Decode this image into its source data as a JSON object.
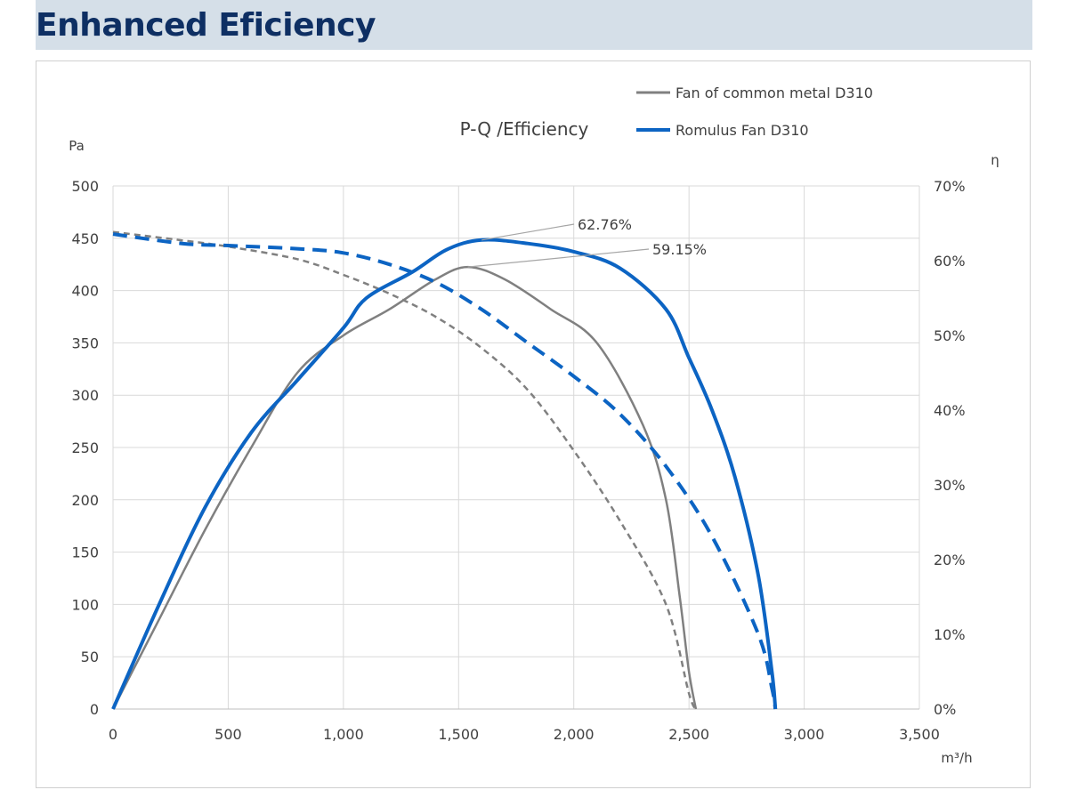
{
  "page": {
    "title": "Enhanced Eficiency"
  },
  "colors": {
    "header_band": "#d5dfe8",
    "title": "#0e2f63",
    "common": "#808080",
    "romulus": "#0c64c3",
    "grid": "#d9d9d9"
  },
  "chart_data": {
    "type": "line",
    "title": "P-Q /Efficiency",
    "xlabel": "m³/h",
    "ylabel_left": "Pa",
    "ylabel_right": "η",
    "xlim": [
      0,
      3500
    ],
    "ylim_left": [
      0,
      500
    ],
    "ylim_right": [
      0,
      70
    ],
    "x_ticks": [
      "0",
      "500",
      "1,000",
      "1,500",
      "2,000",
      "2,500",
      "3,000",
      "3,500"
    ],
    "y_left_ticks": [
      "0",
      "50",
      "100",
      "150",
      "200",
      "250",
      "300",
      "350",
      "400",
      "450",
      "500"
    ],
    "y_right_ticks": [
      "0%",
      "10%",
      "20%",
      "30%",
      "40%",
      "50%",
      "60%",
      "70%"
    ],
    "grid": "on",
    "legend": {
      "placement": "top-right",
      "items": [
        {
          "label": "Fan of common metal D310",
          "color": "#808080"
        },
        {
          "label": "Romulus Fan D310",
          "color": "#0c64c3"
        }
      ]
    },
    "annotations": [
      {
        "text": "62.76%",
        "x": 1600,
        "y_pct": 62.76,
        "series": "Romulus Fan D310"
      },
      {
        "text": "59.15%",
        "x": 1540,
        "y_pct": 59.15,
        "series": "Fan of common metal D310"
      }
    ],
    "series": [
      {
        "name": "Fan of common metal D310",
        "metric": "pressure",
        "axis": "left",
        "style": "dashed",
        "color": "#808080",
        "points": [
          [
            0,
            456
          ],
          [
            300,
            448
          ],
          [
            500,
            442
          ],
          [
            800,
            430
          ],
          [
            1000,
            415
          ],
          [
            1200,
            397
          ],
          [
            1400,
            375
          ],
          [
            1600,
            345
          ],
          [
            1800,
            305
          ],
          [
            2000,
            247
          ],
          [
            2200,
            180
          ],
          [
            2400,
            100
          ],
          [
            2500,
            15
          ],
          [
            2530,
            0
          ]
        ]
      },
      {
        "name": "Fan of common metal D310",
        "metric": "efficiency",
        "axis": "right",
        "style": "solid",
        "color": "#808080",
        "points": [
          [
            0,
            0
          ],
          [
            200,
            12
          ],
          [
            400,
            24
          ],
          [
            600,
            35
          ],
          [
            800,
            45
          ],
          [
            1000,
            50
          ],
          [
            1200,
            53.5
          ],
          [
            1400,
            57.5
          ],
          [
            1540,
            59.15
          ],
          [
            1700,
            57.5
          ],
          [
            1900,
            53.5
          ],
          [
            2100,
            49
          ],
          [
            2300,
            38
          ],
          [
            2400,
            28
          ],
          [
            2460,
            15
          ],
          [
            2500,
            5
          ],
          [
            2530,
            0
          ]
        ]
      },
      {
        "name": "Romulus Fan D310",
        "metric": "pressure",
        "axis": "left",
        "style": "dashed",
        "color": "#0c64c3",
        "points": [
          [
            0,
            454
          ],
          [
            300,
            445
          ],
          [
            500,
            443
          ],
          [
            800,
            440
          ],
          [
            1000,
            436
          ],
          [
            1200,
            425
          ],
          [
            1400,
            408
          ],
          [
            1600,
            382
          ],
          [
            1800,
            350
          ],
          [
            2000,
            318
          ],
          [
            2200,
            282
          ],
          [
            2400,
            232
          ],
          [
            2600,
            165
          ],
          [
            2800,
            72
          ],
          [
            2860,
            20
          ],
          [
            2875,
            0
          ]
        ]
      },
      {
        "name": "Romulus Fan D310",
        "metric": "efficiency",
        "axis": "right",
        "style": "solid",
        "color": "#0c64c3",
        "points": [
          [
            0,
            0
          ],
          [
            200,
            14
          ],
          [
            400,
            27
          ],
          [
            600,
            37
          ],
          [
            800,
            44
          ],
          [
            1000,
            51
          ],
          [
            1100,
            55
          ],
          [
            1300,
            58.5
          ],
          [
            1450,
            61.5
          ],
          [
            1600,
            62.76
          ],
          [
            1800,
            62.3
          ],
          [
            2000,
            61.2
          ],
          [
            2200,
            59
          ],
          [
            2400,
            53.5
          ],
          [
            2500,
            47
          ],
          [
            2600,
            40
          ],
          [
            2700,
            31
          ],
          [
            2800,
            18
          ],
          [
            2860,
            5
          ],
          [
            2875,
            0
          ]
        ]
      }
    ]
  }
}
